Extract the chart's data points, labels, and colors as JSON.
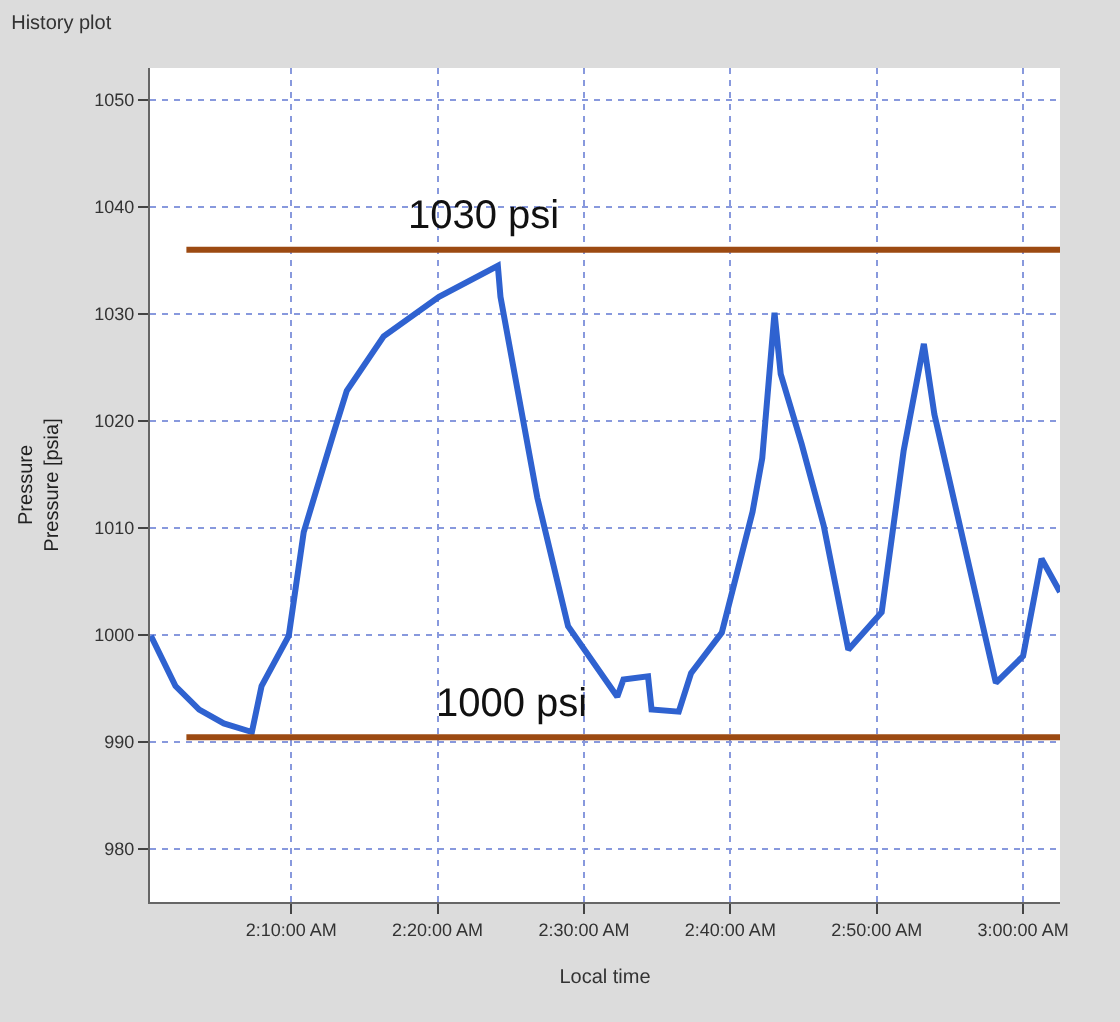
{
  "chart_data": {
    "type": "line",
    "title": "History plot",
    "xlabel": "Local time",
    "ylabel": "Pressure\nPressure [psia]",
    "x": [
      2.007,
      2.035,
      2.062,
      2.09,
      2.122,
      2.133,
      2.164,
      2.181,
      2.216,
      2.23,
      2.272,
      2.335,
      2.402,
      2.405,
      2.447,
      2.482,
      2.538,
      2.545,
      2.573,
      2.577,
      2.608,
      2.622,
      2.657,
      2.692,
      2.703,
      2.717,
      2.724,
      2.748,
      2.773,
      2.801,
      2.839,
      2.864,
      2.887,
      2.899,
      2.933,
      2.969,
      3.0,
      3.021,
      3.042
    ],
    "series": [
      {
        "color": "#2f62d0",
        "values": [
          999.9,
          995.2,
          993.0,
          991.7,
          990.9,
          995.2,
          999.9,
          1009.6,
          1019.1,
          1022.8,
          1027.9,
          1031.6,
          1034.5,
          1031.6,
          1012.8,
          1000.8,
          994.2,
          995.8,
          996.1,
          993.0,
          992.8,
          996.4,
          1000.2,
          1011.5,
          1016.5,
          1030.1,
          1024.4,
          1017.8,
          1010.2,
          998.6,
          1002.1,
          1017.2,
          1027.2,
          1020.6,
          1008.4,
          995.5,
          998.0,
          1007.1,
          1004.0
        ]
      }
    ],
    "xlim": [
      2.006,
      3.042
    ],
    "ylim": [
      975,
      1053
    ],
    "xticks": [
      {
        "value": 2.1667,
        "label": "2:10:00 AM"
      },
      {
        "value": 2.3333,
        "label": "2:20:00 AM"
      },
      {
        "value": 2.5,
        "label": "2:30:00 AM"
      },
      {
        "value": 2.6667,
        "label": "2:40:00 AM"
      },
      {
        "value": 2.8333,
        "label": "2:50:00 AM"
      },
      {
        "value": 3.0,
        "label": "3:00:00 AM"
      }
    ],
    "yticks": [
      980,
      990,
      1000,
      1010,
      1020,
      1030,
      1040,
      1050
    ],
    "ref_lines": [
      {
        "axis": "y",
        "value": 1036,
        "label": "1030 psi",
        "color": "#9c4a12"
      },
      {
        "axis": "y",
        "value": 990.4,
        "label": "1000 psi",
        "color": "#9c4a12"
      }
    ],
    "grid": true,
    "line_style": "solid"
  }
}
